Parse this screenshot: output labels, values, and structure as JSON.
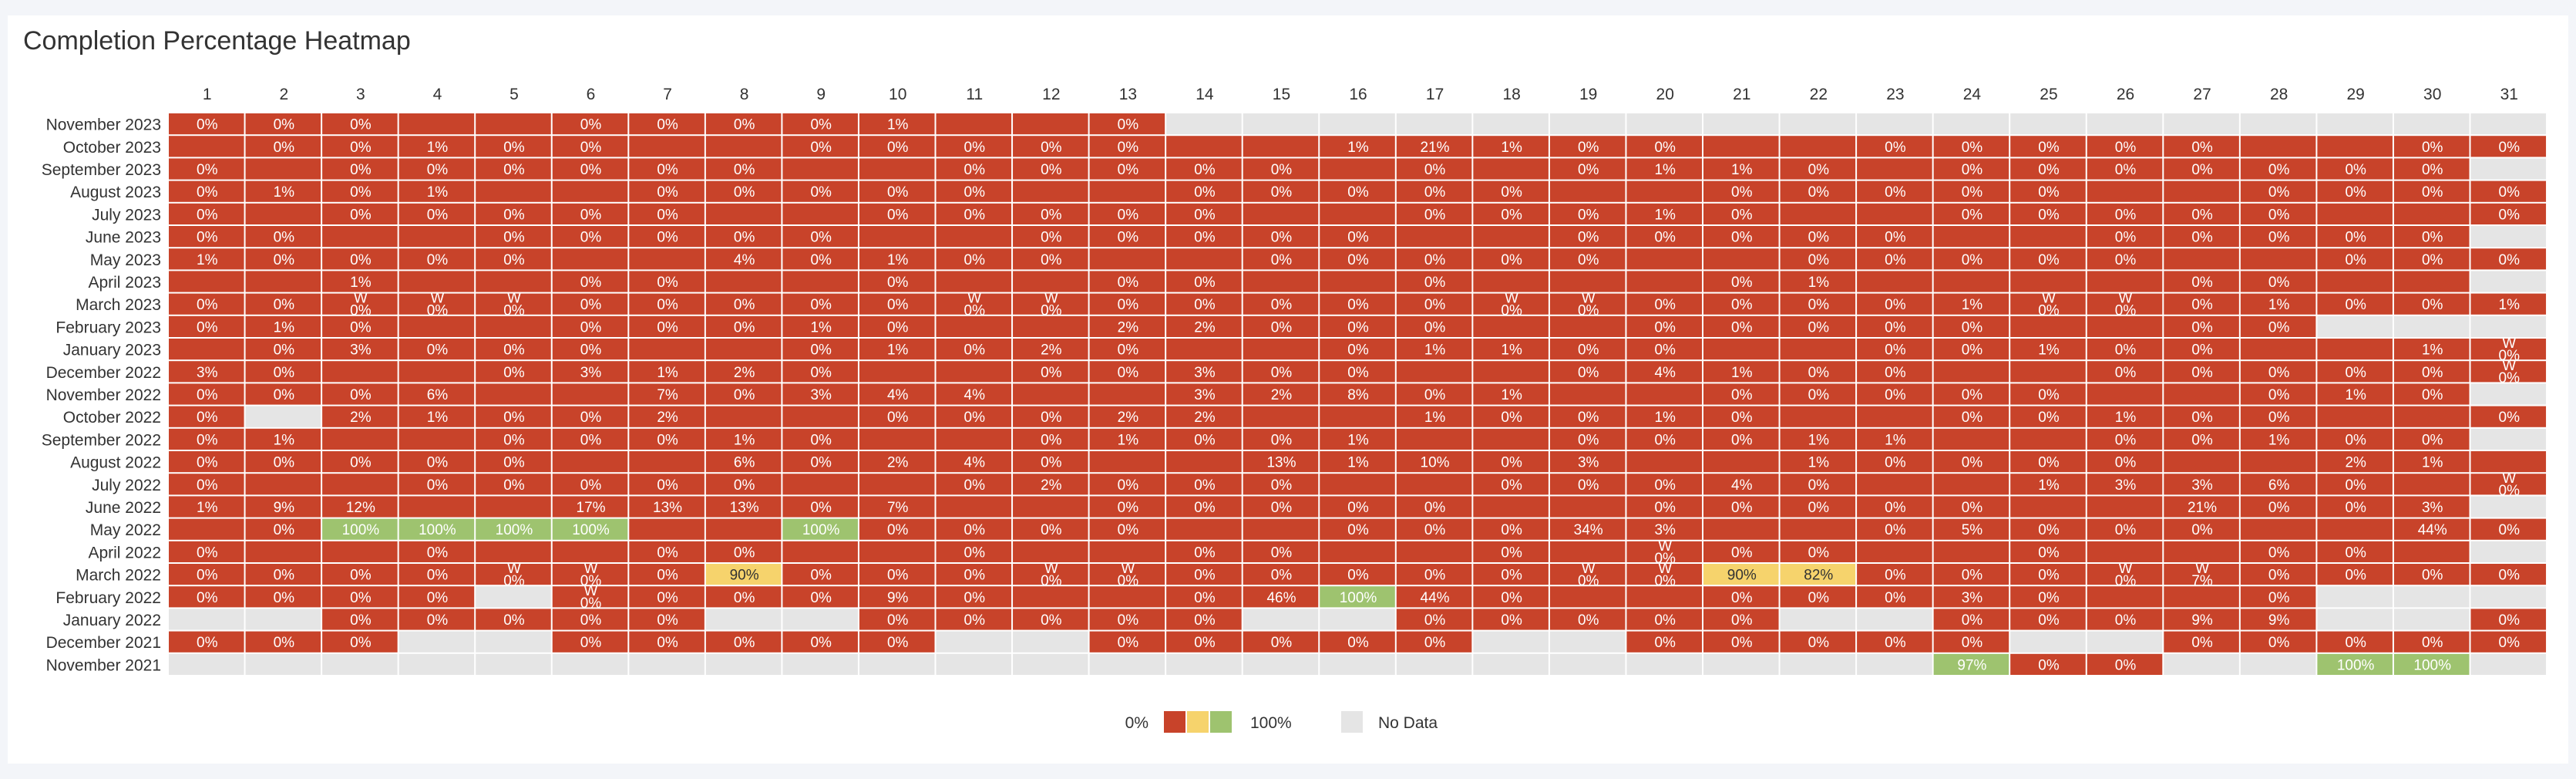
{
  "chart_data": {
    "type": "heatmap",
    "title": "Completion Percentage Heatmap",
    "columns": [
      "1",
      "2",
      "3",
      "4",
      "5",
      "6",
      "7",
      "8",
      "9",
      "10",
      "11",
      "12",
      "13",
      "14",
      "15",
      "16",
      "17",
      "18",
      "19",
      "20",
      "21",
      "22",
      "23",
      "24",
      "25",
      "26",
      "27",
      "28",
      "29",
      "30",
      "31"
    ],
    "rows": [
      {
        "label": "November 2023",
        "cells": [
          "0%",
          "0%",
          "0%",
          "",
          "",
          "0%",
          "0%",
          "0%",
          "0%",
          "1%",
          "",
          "",
          "0%",
          null,
          null,
          null,
          null,
          null,
          null,
          null,
          null,
          null,
          null,
          null,
          null,
          null,
          null,
          null,
          null,
          null,
          null
        ]
      },
      {
        "label": "October 2023",
        "cells": [
          "",
          "0%",
          "0%",
          "1%",
          "0%",
          "0%",
          "",
          "",
          "0%",
          "0%",
          "0%",
          "0%",
          "0%",
          "",
          "",
          "1%",
          "21%",
          "1%",
          "0%",
          "0%",
          "",
          "",
          "0%",
          "0%",
          "0%",
          "0%",
          "0%",
          "",
          "",
          "0%",
          "0%"
        ]
      },
      {
        "label": "September 2023",
        "cells": [
          "0%",
          "",
          "0%",
          "0%",
          "0%",
          "0%",
          "0%",
          "0%",
          "",
          "",
          "0%",
          "0%",
          "0%",
          "0%",
          "0%",
          "",
          "0%",
          "",
          "0%",
          "1%",
          "1%",
          "0%",
          "",
          "0%",
          "0%",
          "0%",
          "0%",
          "0%",
          "0%",
          "0%",
          null
        ]
      },
      {
        "label": "August 2023",
        "cells": [
          "0%",
          "1%",
          "0%",
          "1%",
          "",
          "",
          "0%",
          "0%",
          "0%",
          "0%",
          "0%",
          "",
          "",
          "0%",
          "0%",
          "0%",
          "0%",
          "0%",
          "",
          "",
          "0%",
          "0%",
          "0%",
          "0%",
          "0%",
          "",
          "",
          "0%",
          "0%",
          "0%",
          "0%"
        ]
      },
      {
        "label": "July 2023",
        "cells": [
          "0%",
          "",
          "0%",
          "0%",
          "0%",
          "0%",
          "0%",
          "",
          "",
          "0%",
          "0%",
          "0%",
          "0%",
          "0%",
          "",
          "",
          "0%",
          "0%",
          "0%",
          "1%",
          "0%",
          "",
          "",
          "0%",
          "0%",
          "0%",
          "0%",
          "0%",
          "",
          "",
          "0%"
        ]
      },
      {
        "label": "June 2023",
        "cells": [
          "0%",
          "0%",
          "",
          "",
          "0%",
          "0%",
          "0%",
          "0%",
          "0%",
          "",
          "",
          "0%",
          "0%",
          "0%",
          "0%",
          "0%",
          "",
          "",
          "0%",
          "0%",
          "0%",
          "0%",
          "0%",
          "",
          "",
          "0%",
          "0%",
          "0%",
          "0%",
          "0%",
          null
        ]
      },
      {
        "label": "May 2023",
        "cells": [
          "1%",
          "0%",
          "0%",
          "0%",
          "0%",
          "",
          "",
          "4%",
          "0%",
          "1%",
          "0%",
          "0%",
          "",
          "",
          "0%",
          "0%",
          "0%",
          "0%",
          "0%",
          "",
          "",
          "0%",
          "0%",
          "0%",
          "0%",
          "0%",
          "",
          "",
          "0%",
          "0%",
          "0%"
        ]
      },
      {
        "label": "April 2023",
        "cells": [
          "",
          "",
          "1%",
          "",
          "",
          "0%",
          "0%",
          "",
          "",
          "0%",
          "",
          "",
          "0%",
          "0%",
          "",
          "",
          "0%",
          "",
          "",
          "",
          "0%",
          "1%",
          "",
          "",
          "",
          "",
          "0%",
          "0%",
          "",
          "",
          null
        ]
      },
      {
        "label": "March 2023",
        "cells": [
          "0%",
          "0%",
          "W\n0%",
          "W\n0%",
          "W\n0%",
          "0%",
          "0%",
          "0%",
          "0%",
          "0%",
          "W\n0%",
          "W\n0%",
          "0%",
          "0%",
          "0%",
          "0%",
          "0%",
          "W\n0%",
          "W\n0%",
          "0%",
          "0%",
          "0%",
          "0%",
          "1%",
          "W\n0%",
          "W\n0%",
          "0%",
          "1%",
          "0%",
          "0%",
          "1%"
        ]
      },
      {
        "label": "February 2023",
        "cells": [
          "0%",
          "1%",
          "0%",
          "",
          "",
          "0%",
          "0%",
          "0%",
          "1%",
          "0%",
          "",
          "",
          "2%",
          "2%",
          "0%",
          "0%",
          "0%",
          "",
          "",
          "0%",
          "0%",
          "0%",
          "0%",
          "0%",
          "",
          "",
          "0%",
          "0%",
          null,
          null,
          null
        ]
      },
      {
        "label": "January 2023",
        "cells": [
          "",
          "0%",
          "3%",
          "0%",
          "0%",
          "0%",
          "",
          "",
          "0%",
          "1%",
          "0%",
          "2%",
          "0%",
          "",
          "",
          "0%",
          "1%",
          "1%",
          "0%",
          "0%",
          "",
          "",
          "0%",
          "0%",
          "1%",
          "0%",
          "0%",
          "",
          "",
          "1%",
          "W\n0%"
        ]
      },
      {
        "label": "December 2022",
        "cells": [
          "3%",
          "0%",
          "",
          "",
          "0%",
          "3%",
          "1%",
          "2%",
          "0%",
          "",
          "",
          "0%",
          "0%",
          "3%",
          "0%",
          "0%",
          "",
          "",
          "0%",
          "4%",
          "1%",
          "0%",
          "0%",
          "",
          "",
          "0%",
          "0%",
          "0%",
          "0%",
          "0%",
          "W\n0%"
        ]
      },
      {
        "label": "November 2022",
        "cells": [
          "0%",
          "0%",
          "0%",
          "6%",
          "",
          "",
          "7%",
          "0%",
          "3%",
          "4%",
          "4%",
          "",
          "",
          "3%",
          "2%",
          "8%",
          "0%",
          "1%",
          "",
          "",
          "0%",
          "0%",
          "0%",
          "0%",
          "0%",
          "",
          "",
          "0%",
          "1%",
          "0%",
          null
        ]
      },
      {
        "label": "October 2022",
        "cells": [
          "0%",
          null,
          "2%",
          "1%",
          "0%",
          "0%",
          "2%",
          "",
          "",
          "0%",
          "0%",
          "0%",
          "2%",
          "2%",
          "",
          "",
          "1%",
          "0%",
          "0%",
          "1%",
          "0%",
          "",
          "",
          "0%",
          "0%",
          "1%",
          "0%",
          "0%",
          "",
          "",
          "0%"
        ]
      },
      {
        "label": "September 2022",
        "cells": [
          "0%",
          "1%",
          "",
          "",
          "0%",
          "0%",
          "0%",
          "1%",
          "0%",
          "",
          "",
          "0%",
          "1%",
          "0%",
          "0%",
          "1%",
          "",
          "",
          "0%",
          "0%",
          "0%",
          "1%",
          "1%",
          "",
          "",
          "0%",
          "0%",
          "1%",
          "0%",
          "0%",
          null
        ]
      },
      {
        "label": "August 2022",
        "cells": [
          "0%",
          "0%",
          "0%",
          "0%",
          "0%",
          "",
          "",
          "6%",
          "0%",
          "2%",
          "4%",
          "0%",
          "",
          "",
          "13%",
          "1%",
          "10%",
          "0%",
          "3%",
          "",
          "",
          "1%",
          "0%",
          "0%",
          "0%",
          "0%",
          "",
          "",
          "2%",
          "1%",
          ""
        ]
      },
      {
        "label": "July 2022",
        "cells": [
          "0%",
          "",
          "",
          "0%",
          "0%",
          "0%",
          "0%",
          "0%",
          "",
          "",
          "0%",
          "2%",
          "0%",
          "0%",
          "0%",
          "",
          "",
          "0%",
          "0%",
          "0%",
          "4%",
          "0%",
          "",
          "",
          "1%",
          "3%",
          "3%",
          "6%",
          "0%",
          "",
          "W\n0%"
        ]
      },
      {
        "label": "June 2022",
        "cells": [
          "1%",
          "9%",
          "12%",
          "",
          "",
          "17%",
          "13%",
          "13%",
          "0%",
          "7%",
          "",
          "",
          "0%",
          "0%",
          "0%",
          "0%",
          "0%",
          "",
          "",
          "0%",
          "0%",
          "0%",
          "0%",
          "0%",
          "",
          "",
          "21%",
          "0%",
          "0%",
          "3%",
          null
        ]
      },
      {
        "label": "May 2022",
        "cells": [
          "",
          "0%",
          "100%",
          "100%",
          "100%",
          "100%",
          "",
          "",
          "100%",
          "0%",
          "0%",
          "0%",
          "0%",
          "",
          "",
          "0%",
          "0%",
          "0%",
          "34%",
          "3%",
          "",
          "",
          "0%",
          "5%",
          "0%",
          "0%",
          "0%",
          "",
          "",
          "44%",
          "0%"
        ]
      },
      {
        "label": "April 2022",
        "cells": [
          "0%",
          "",
          "",
          "0%",
          "",
          "",
          "0%",
          "0%",
          "",
          "",
          "0%",
          "",
          "",
          "0%",
          "0%",
          "",
          "",
          "0%",
          "",
          "W\n0%",
          "0%",
          "0%",
          "",
          "",
          "0%",
          "",
          "",
          "0%",
          "0%",
          "",
          null
        ]
      },
      {
        "label": "March 2022",
        "cells": [
          "0%",
          "0%",
          "0%",
          "0%",
          "W\n0%",
          "W\n0%",
          "0%",
          "90%",
          "0%",
          "0%",
          "0%",
          "W\n0%",
          "W\n0%",
          "0%",
          "0%",
          "0%",
          "0%",
          "0%",
          "W\n0%",
          "W\n0%",
          "90%",
          "82%",
          "0%",
          "0%",
          "0%",
          "W\n0%",
          "W\n7%",
          "0%",
          "0%",
          "0%",
          "0%"
        ]
      },
      {
        "label": "February 2022",
        "cells": [
          "0%",
          "0%",
          "0%",
          "0%",
          null,
          "W\n0%",
          "0%",
          "0%",
          "0%",
          "9%",
          "0%",
          "",
          "",
          "0%",
          "46%",
          "100%",
          "44%",
          "0%",
          "",
          "",
          "0%",
          "0%",
          "0%",
          "3%",
          "0%",
          "",
          "",
          "0%",
          null,
          null,
          null
        ]
      },
      {
        "label": "January 2022",
        "cells": [
          null,
          null,
          "0%",
          "0%",
          "0%",
          "0%",
          "0%",
          null,
          null,
          "0%",
          "0%",
          "0%",
          "0%",
          "0%",
          null,
          null,
          "0%",
          "0%",
          "0%",
          "0%",
          "0%",
          null,
          null,
          "0%",
          "0%",
          "0%",
          "9%",
          "9%",
          null,
          null,
          "0%"
        ]
      },
      {
        "label": "December 2021",
        "cells": [
          "0%",
          "0%",
          "0%",
          null,
          null,
          "0%",
          "0%",
          "0%",
          "0%",
          "0%",
          null,
          null,
          "0%",
          "0%",
          "0%",
          "0%",
          "0%",
          null,
          null,
          "0%",
          "0%",
          "0%",
          "0%",
          "0%",
          null,
          null,
          "0%",
          "0%",
          "0%",
          "0%",
          "0%"
        ]
      },
      {
        "label": "November 2021",
        "cells": [
          null,
          null,
          null,
          null,
          null,
          null,
          null,
          null,
          null,
          null,
          null,
          null,
          null,
          null,
          null,
          null,
          null,
          null,
          null,
          null,
          null,
          null,
          null,
          "97%",
          "0%",
          "0%",
          null,
          null,
          "100%",
          "100%",
          null
        ]
      }
    ],
    "color_scale": {
      "low": "#c8432a",
      "mid": "#f6d36c",
      "high": "#9ec36f",
      "no_data": "#e5e5e5"
    },
    "legend": {
      "min_label": "0%",
      "max_label": "100%",
      "no_data_label": "No Data"
    }
  }
}
